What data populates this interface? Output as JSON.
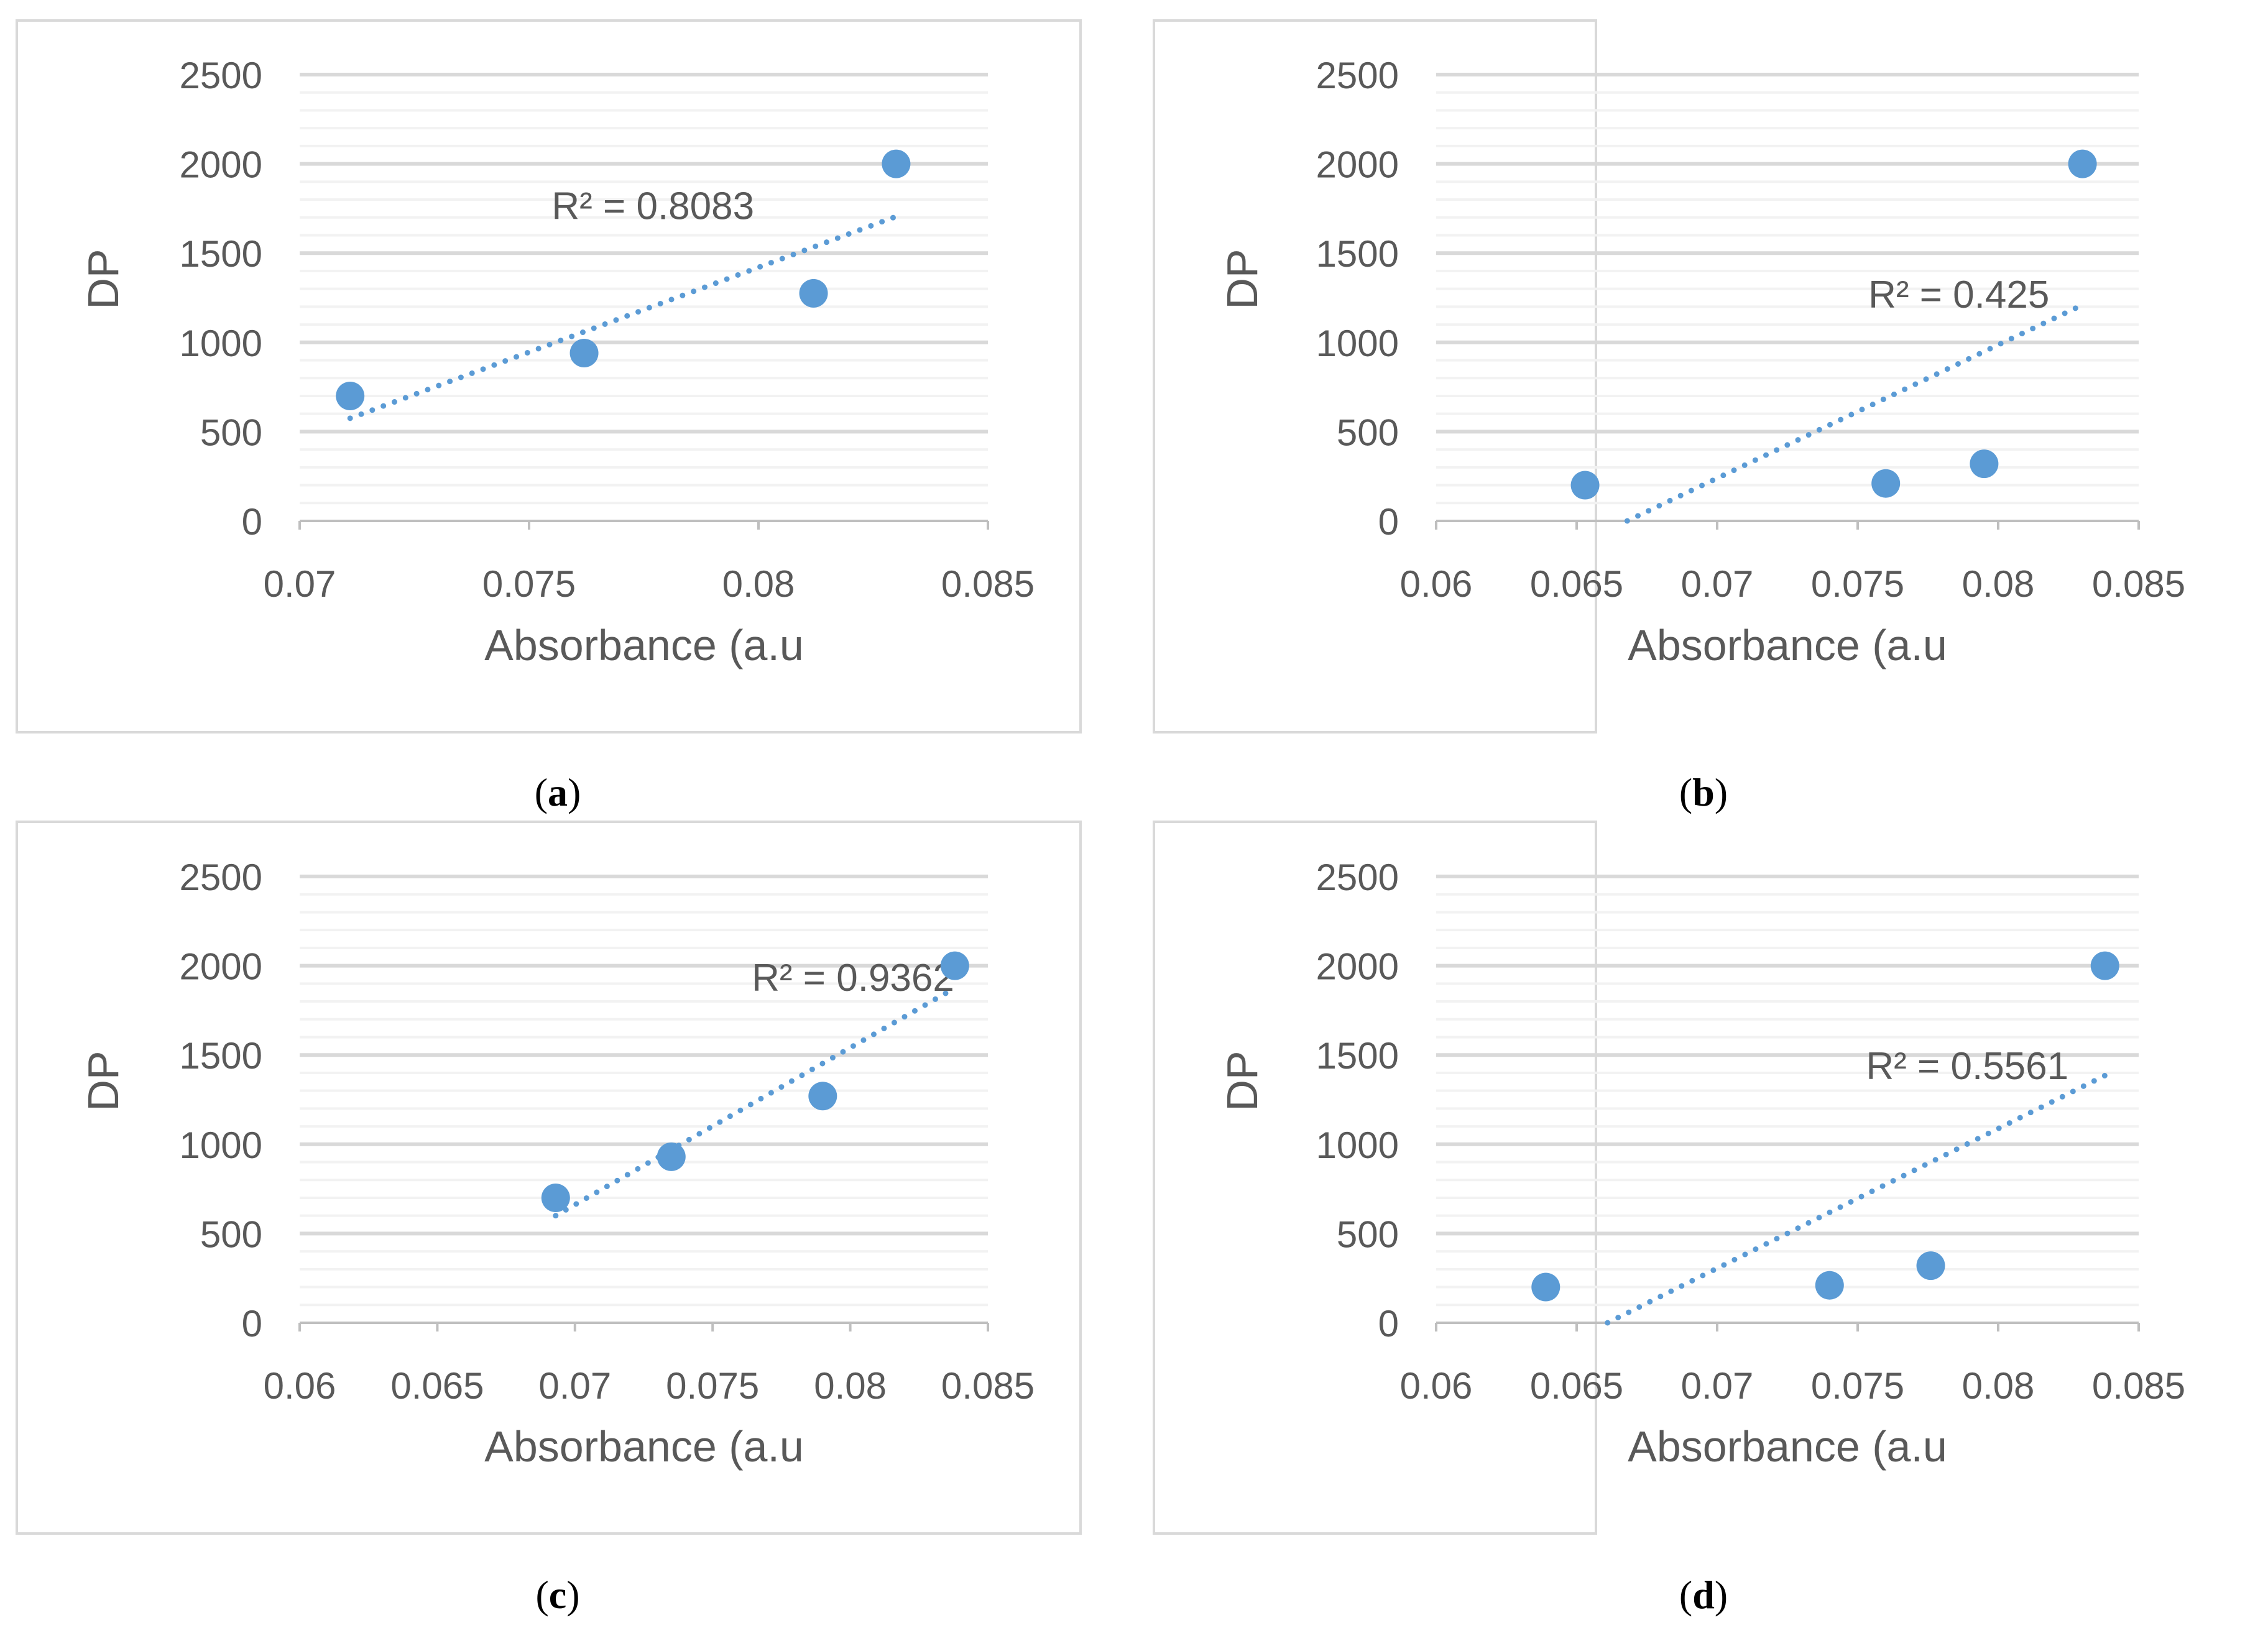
{
  "colors": {
    "marker": "#5b9bd5",
    "trendline": "#5b9bd5",
    "text": "#595959",
    "major_grid": "#d9d9d9",
    "minor_grid": "#f2f2f2",
    "frame": "#d9d9d9",
    "axis": "#bfbfbf",
    "caption": "#000000"
  },
  "chart_data": [
    {
      "id": "a",
      "type": "scatter",
      "caption": "a",
      "xlabel": "Absorbance (a.u",
      "ylabel": "DP",
      "xlim": [
        0.07,
        0.085
      ],
      "ylim": [
        0,
        2500
      ],
      "xticks": [
        0.07,
        0.075,
        0.08,
        0.085
      ],
      "xtick_labels": [
        "0.07",
        "0.075",
        "0.08",
        "0.085"
      ],
      "yticks": [
        0,
        500,
        1000,
        1500,
        2000,
        2500
      ],
      "ytick_labels": [
        "0",
        "500",
        "1000",
        "1500",
        "2000",
        "2500"
      ],
      "grid": true,
      "points": [
        {
          "x": 0.0711,
          "y": 700
        },
        {
          "x": 0.0762,
          "y": 940
        },
        {
          "x": 0.0812,
          "y": 1275
        },
        {
          "x": 0.083,
          "y": 2000
        }
      ],
      "trendline": {
        "x1": 0.0711,
        "y1": 575,
        "x2": 0.083,
        "y2": 1705
      },
      "r2_label": "R² = 0.8083",
      "r2_pos": {
        "x": 0.0777,
        "y": 1690
      }
    },
    {
      "id": "b",
      "type": "scatter",
      "caption": "b",
      "xlabel": "Absorbance (a.u",
      "ylabel": "DP",
      "xlim": [
        0.06,
        0.085
      ],
      "ylim": [
        0,
        2500
      ],
      "xticks": [
        0.06,
        0.065,
        0.07,
        0.075,
        0.08,
        0.085
      ],
      "xtick_labels": [
        "0.06",
        "0.065",
        "0.07",
        "0.075",
        "0.08",
        "0.085"
      ],
      "yticks": [
        0,
        500,
        1000,
        1500,
        2000,
        2500
      ],
      "ytick_labels": [
        "0",
        "500",
        "1000",
        "1500",
        "2000",
        "2500"
      ],
      "grid": true,
      "points": [
        {
          "x": 0.0653,
          "y": 200
        },
        {
          "x": 0.076,
          "y": 210
        },
        {
          "x": 0.0795,
          "y": 320
        },
        {
          "x": 0.083,
          "y": 2000
        }
      ],
      "trendline": {
        "x1": 0.0668,
        "y1": 0,
        "x2": 0.083,
        "y2": 1210
      },
      "r2_label": "R² = 0.425",
      "r2_pos": {
        "x": 0.0786,
        "y": 1195
      }
    },
    {
      "id": "c",
      "type": "scatter",
      "caption": "c",
      "xlabel": "Absorbance (a.u",
      "ylabel": "DP",
      "xlim": [
        0.06,
        0.085
      ],
      "ylim": [
        0,
        2500
      ],
      "xticks": [
        0.06,
        0.065,
        0.07,
        0.075,
        0.08,
        0.085
      ],
      "xtick_labels": [
        "0.06",
        "0.065",
        "0.07",
        "0.075",
        "0.08",
        "0.085"
      ],
      "yticks": [
        0,
        500,
        1000,
        1500,
        2000,
        2500
      ],
      "ytick_labels": [
        "0",
        "500",
        "1000",
        "1500",
        "2000",
        "2500"
      ],
      "grid": true,
      "points": [
        {
          "x": 0.0693,
          "y": 700
        },
        {
          "x": 0.0735,
          "y": 930
        },
        {
          "x": 0.079,
          "y": 1270
        },
        {
          "x": 0.0838,
          "y": 2000
        }
      ],
      "trendline": {
        "x1": 0.0693,
        "y1": 600,
        "x2": 0.0838,
        "y2": 1875
      },
      "r2_label": "R² = 0.9362",
      "r2_pos": {
        "x": 0.0801,
        "y": 1860
      }
    },
    {
      "id": "d",
      "type": "scatter",
      "caption": "d",
      "xlabel": "Absorbance (a.u",
      "ylabel": "DP",
      "xlim": [
        0.06,
        0.085
      ],
      "ylim": [
        0,
        2500
      ],
      "xticks": [
        0.06,
        0.065,
        0.07,
        0.075,
        0.08,
        0.085
      ],
      "xtick_labels": [
        "0.06",
        "0.065",
        "0.07",
        "0.075",
        "0.08",
        "0.085"
      ],
      "yticks": [
        0,
        500,
        1000,
        1500,
        2000,
        2500
      ],
      "ytick_labels": [
        "0",
        "500",
        "1000",
        "1500",
        "2000",
        "2500"
      ],
      "grid": true,
      "points": [
        {
          "x": 0.0639,
          "y": 200
        },
        {
          "x": 0.074,
          "y": 210
        },
        {
          "x": 0.0776,
          "y": 320
        },
        {
          "x": 0.0838,
          "y": 2000
        }
      ],
      "trendline": {
        "x1": 0.0661,
        "y1": 0,
        "x2": 0.0838,
        "y2": 1385
      },
      "r2_label": "R² = 0.5561",
      "r2_pos": {
        "x": 0.0789,
        "y": 1365
      }
    }
  ]
}
